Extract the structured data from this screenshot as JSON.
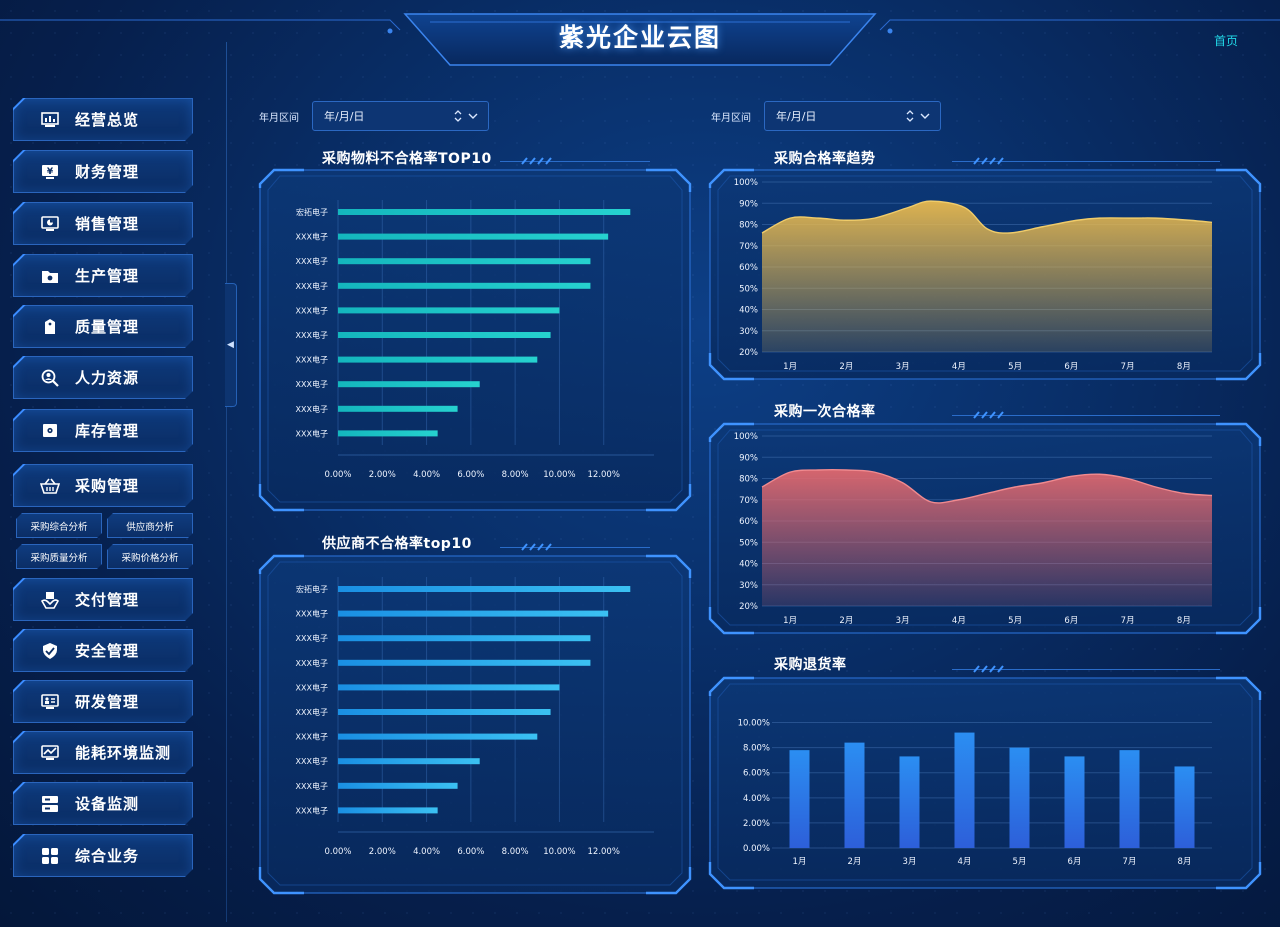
{
  "header": {
    "title": "紫光企业云图",
    "home_link": "首页"
  },
  "sidebar": {
    "items": [
      {
        "label": "经营总览",
        "icon": "chart-monitor-icon"
      },
      {
        "label": "财务管理",
        "icon": "yen-monitor-icon"
      },
      {
        "label": "销售管理",
        "icon": "pie-monitor-icon"
      },
      {
        "label": "生产管理",
        "icon": "folder-gear-icon"
      },
      {
        "label": "质量管理",
        "icon": "tag-icon"
      },
      {
        "label": "人力资源",
        "icon": "person-search-icon"
      },
      {
        "label": "库存管理",
        "icon": "safe-icon"
      },
      {
        "label": "采购管理",
        "icon": "basket-icon"
      },
      {
        "label": "交付管理",
        "icon": "hand-box-icon"
      },
      {
        "label": "安全管理",
        "icon": "shield-hand-icon"
      },
      {
        "label": "研发管理",
        "icon": "monitor-person-icon"
      },
      {
        "label": "能耗环境监测",
        "icon": "monitor-trend-icon"
      },
      {
        "label": "设备监测",
        "icon": "server-icon"
      },
      {
        "label": "综合业务",
        "icon": "grid-icon"
      }
    ],
    "sub_items": [
      "采购综合分析",
      "供应商分析",
      "采购质量分析",
      "采购价格分析"
    ]
  },
  "filters": [
    {
      "label": "年月区间",
      "placeholder": "年/月/日"
    },
    {
      "label": "年月区间",
      "placeholder": "年/月/日"
    }
  ],
  "colors": {
    "accent": "#21d7e6",
    "teal_bar": "#1fc8c8",
    "blue_bar": "#2ea8ee",
    "gold_area": "#e8b94e",
    "red_area": "#e0686e",
    "column": "#2a86f0"
  },
  "chart_data": [
    {
      "type": "bar",
      "orientation": "horizontal",
      "title": "采购物料不合格率TOP10",
      "categories": [
        "宏拓电子",
        "XXX电子",
        "XXX电子",
        "XXX电子",
        "XXX电子",
        "XXX电子",
        "XXX电子",
        "XXX电子",
        "XXX电子",
        "XXX电子"
      ],
      "values": [
        13.2,
        12.2,
        11.4,
        11.4,
        10.0,
        9.6,
        9.0,
        6.4,
        5.4,
        4.5
      ],
      "x_ticks": [
        "0.00%",
        "2.00%",
        "4.00%",
        "6.00%",
        "8.00%",
        "10.00%",
        "12.00%"
      ],
      "xlim": [
        0,
        14
      ],
      "grid": true
    },
    {
      "type": "bar",
      "orientation": "horizontal",
      "title": "供应商不合格率top10",
      "categories": [
        "宏拓电子",
        "XXX电子",
        "XXX电子",
        "XXX电子",
        "XXX电子",
        "XXX电子",
        "XXX电子",
        "XXX电子",
        "XXX电子",
        "XXX电子"
      ],
      "values": [
        13.2,
        12.2,
        11.4,
        11.4,
        10.0,
        9.6,
        9.0,
        6.4,
        5.4,
        4.5
      ],
      "x_ticks": [
        "0.00%",
        "2.00%",
        "4.00%",
        "6.00%",
        "8.00%",
        "10.00%",
        "12.00%"
      ],
      "xlim": [
        0,
        14
      ],
      "grid": true
    },
    {
      "type": "area",
      "title": "采购合格率趋势",
      "categories": [
        "1月",
        "2月",
        "3月",
        "4月",
        "5月",
        "6月",
        "7月",
        "8月"
      ],
      "x": [
        0,
        0.5,
        1,
        1.5,
        2,
        2.6,
        3,
        3.6,
        4,
        4.4,
        5,
        5.6,
        6,
        6.6,
        7,
        7.6,
        8
      ],
      "values": [
        76,
        83,
        83,
        82,
        83,
        88,
        91,
        88,
        78,
        76,
        79,
        82,
        83,
        83,
        83,
        82,
        81
      ],
      "y_ticks": [
        "20%",
        "30%",
        "40%",
        "50%",
        "60%",
        "70%",
        "80%",
        "90%",
        "100%"
      ],
      "ylim": [
        20,
        100
      ],
      "grid": true
    },
    {
      "type": "area",
      "title": "采购一次合格率",
      "categories": [
        "1月",
        "2月",
        "3月",
        "4月",
        "5月",
        "6月",
        "7月",
        "8月"
      ],
      "x": [
        0,
        0.5,
        1,
        1.5,
        2,
        2.5,
        3,
        3.5,
        4,
        4.5,
        5,
        5.5,
        6,
        6.5,
        7,
        7.5,
        8
      ],
      "values": [
        76,
        83,
        84,
        84,
        83,
        78,
        69,
        70,
        73,
        76,
        78,
        81,
        82,
        80,
        76,
        73,
        72
      ],
      "y_ticks": [
        "20%",
        "30%",
        "40%",
        "50%",
        "60%",
        "70%",
        "80%",
        "90%",
        "100%"
      ],
      "ylim": [
        20,
        100
      ],
      "grid": true
    },
    {
      "type": "bar",
      "title": "采购退货率",
      "categories": [
        "1月",
        "2月",
        "3月",
        "4月",
        "5月",
        "6月",
        "7月",
        "8月"
      ],
      "values": [
        7.8,
        8.4,
        7.3,
        9.2,
        8.0,
        7.3,
        7.8,
        6.5
      ],
      "y_ticks": [
        "0.00%",
        "2.00%",
        "4.00%",
        "6.00%",
        "8.00%",
        "10.00%"
      ],
      "ylim": [
        0,
        11
      ],
      "grid": true
    }
  ]
}
